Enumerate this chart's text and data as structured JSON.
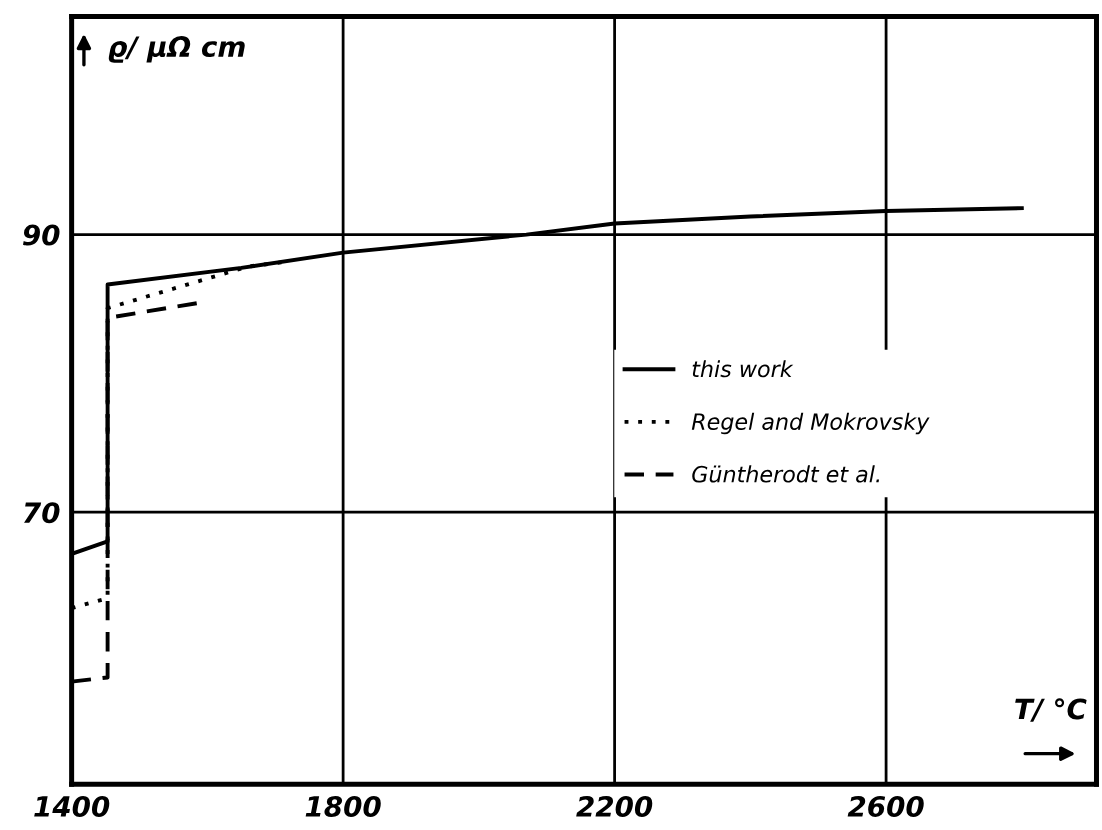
{
  "chart_data": {
    "type": "line",
    "xlabel": "T/ °C",
    "ylabel": "ϱ/ μΩ cm",
    "xlim": [
      1400,
      2910
    ],
    "ylim": [
      50.4,
      105.7
    ],
    "xticks": [
      1400,
      1800,
      2200,
      2600
    ],
    "yticks": [
      70,
      90
    ],
    "grid": true,
    "legend": "right",
    "marker": "none",
    "series": [
      {
        "name": "this work",
        "color": "#000000",
        "line_style": "solid",
        "x": [
          1400,
          1453,
          1453,
          1650,
          1800,
          2070,
          2200,
          2400,
          2600,
          2800
        ],
        "values": [
          67.0,
          67.9,
          86.4,
          87.6,
          88.7,
          90.0,
          90.8,
          91.3,
          91.7,
          91.9
        ]
      },
      {
        "name": "Regel and Mokrovsky",
        "color": "#000000",
        "line_style": "dotted",
        "x": [
          1400,
          1453,
          1453,
          1660,
          1710
        ],
        "values": [
          63.1,
          63.8,
          84.7,
          87.7,
          88.0
        ]
      },
      {
        "name": "Güntherodt et al.",
        "color": "#000000",
        "line_style": "dashed",
        "x": [
          1400,
          1453,
          1453,
          1590
        ],
        "values": [
          57.8,
          58.1,
          84.0,
          85.1
        ]
      }
    ]
  }
}
